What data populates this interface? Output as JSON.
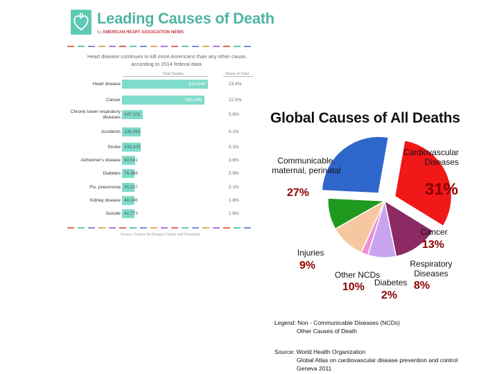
{
  "aha": {
    "title": "Leading Causes of Death",
    "byline_prefix": "by",
    "byline_brand": "AMERICAN HEART ASSOCIATION NEWS",
    "subtitle_line1": "Heart disease continues to kill more Americans than any other cause,",
    "subtitle_line2": "according to 2014 federal data.",
    "col_total": "Total Deaths",
    "col_share": "Share of Total",
    "source": "Source: Centers for Disease Control and Prevention",
    "colors": {
      "accent": "#4fb5a3",
      "bar": "#7fdcca",
      "brand": "#c4343d"
    }
  },
  "chart_data": [
    {
      "type": "bar",
      "title": "Leading Causes of Death",
      "categories": [
        "Heart disease",
        "Cancer",
        "Chronic lower respiratory diseases",
        "Accidents",
        "Stroke",
        "Alzheimer's disease",
        "Diabetes",
        "Flu, pneumonia",
        "Kidney disease",
        "Suicide"
      ],
      "series": [
        {
          "name": "Total Deaths",
          "values": [
            614348,
            591699,
            147101,
            136053,
            133103,
            93541,
            76488,
            55227,
            48146,
            42773
          ],
          "labels": [
            "614,348",
            "591,699",
            "147,101",
            "136,053",
            "133,103",
            "93,541",
            "76,488",
            "55,227",
            "48,146",
            "42,773"
          ]
        },
        {
          "name": "Share of Total",
          "values": [
            23.4,
            22.5,
            5.6,
            5.2,
            5.1,
            3.6,
            2.9,
            2.1,
            1.8,
            1.6
          ],
          "labels": [
            "23.4%",
            "22.5%",
            "5.6%",
            "5.2%",
            "5.1%",
            "3.6%",
            "2.9%",
            "2.1%",
            "1.8%",
            "1.6%"
          ]
        }
      ]
    },
    {
      "type": "pie",
      "title": "Global Causes of All Deaths",
      "slices": [
        {
          "label": "Cardiovascular Diseases",
          "value": 31,
          "pct": "31%",
          "color": "#f01818",
          "group": "ncd"
        },
        {
          "label": "Cancer",
          "value": 13,
          "pct": "13%",
          "color": "#8b2a63",
          "group": "ncd"
        },
        {
          "label": "Respiratory Diseases",
          "value": 8,
          "pct": "8%",
          "color": "#c9a4ee",
          "group": "ncd"
        },
        {
          "label": "Diabetes",
          "value": 2,
          "pct": "2%",
          "color": "#ee8fd8",
          "group": "ncd"
        },
        {
          "label": "Other NCDs",
          "value": 10,
          "pct": "10%",
          "color": "#f7c8a0",
          "group": "ncd"
        },
        {
          "label": "Injuries",
          "value": 9,
          "pct": "9%",
          "color": "#1f9a1f",
          "group": "other"
        },
        {
          "label": "Communicable, maternal, perinatal",
          "value": 27,
          "pct": "27%",
          "color": "#2f66cc",
          "group": "other"
        }
      ]
    }
  ],
  "legend": {
    "prefix": "Legend:",
    "ncd": "Non - Communicable Diseases (NCDs)",
    "other": "Other Causes of Death"
  },
  "source": {
    "prefix": "Source:",
    "line1": "World Health Organization",
    "line2": "Global Atlas on cardiovascular disease prevention and control",
    "line3": "Geneva 2011"
  }
}
